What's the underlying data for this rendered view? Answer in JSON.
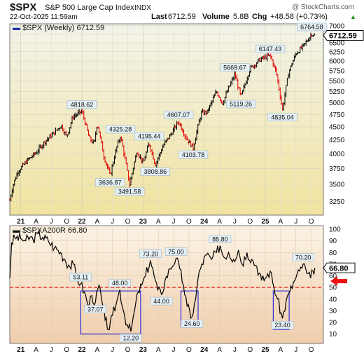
{
  "header": {
    "symbol": "$SPX",
    "name": "S&P 500 Large Cap Index",
    "exchange": "INDX",
    "date": "22-Oct-2025 11:59am",
    "watermark": "@ StockCharts.com",
    "last_label": "Last",
    "last_value": "6712.59",
    "volume_label": "Volume",
    "volume_value": "5.8B",
    "chg_label": "Chg",
    "chg_value": "+48.58 (+0.73%)",
    "chg_arrow": "▲"
  },
  "colors": {
    "price_bg_top": "#f3f3ea",
    "price_bg_bottom": "#f1e3a0",
    "ind_bg_top": "#fbf3e4",
    "ind_bg_bottom": "#f0ceac",
    "up": "#000000",
    "down": "#e00000",
    "box": "#2c2cd6",
    "threshold": "#e00000",
    "arrow": "#ee1111",
    "label_bg": "#e4f0f5",
    "label_border": "#9ab8c8"
  },
  "chart_data": [
    {
      "type": "line",
      "legend": "$SPX (Weekly) 6712.59",
      "y_ticks": [
        3250,
        3500,
        3750,
        4000,
        4250,
        4500,
        4750,
        5000,
        5250,
        5500,
        5750,
        6000,
        6250,
        6500,
        6750,
        7000
      ],
      "y_scale": "log",
      "last_value_label": "6712.59",
      "x_ticks": [
        "21",
        "A",
        "J",
        "O",
        "22",
        "A",
        "J",
        "O",
        "23",
        "A",
        "J",
        "O",
        "24",
        "A",
        "J",
        "O",
        "25",
        "A",
        "J",
        "O"
      ],
      "x_tick_t": [
        2021.0,
        2021.25,
        2021.5,
        2021.75,
        2022.0,
        2022.25,
        2022.5,
        2022.75,
        2023.0,
        2023.25,
        2023.5,
        2023.75,
        2024.0,
        2024.25,
        2024.5,
        2024.75,
        2025.0,
        2025.25,
        2025.5,
        2025.75
      ],
      "key_points": [
        {
          "t": 2020.82,
          "v": 3270
        },
        {
          "t": 2020.88,
          "v": 3510
        },
        {
          "t": 2020.95,
          "v": 3700
        },
        {
          "t": 2021.12,
          "v": 3900
        },
        {
          "t": 2021.25,
          "v": 4020
        },
        {
          "t": 2021.4,
          "v": 4230
        },
        {
          "t": 2021.55,
          "v": 4390
        },
        {
          "t": 2021.66,
          "v": 4530
        },
        {
          "t": 2021.75,
          "v": 4310
        },
        {
          "t": 2021.85,
          "v": 4700
        },
        {
          "t": 2022.0,
          "v": 4818.62
        },
        {
          "t": 2022.12,
          "v": 4280
        },
        {
          "t": 2022.2,
          "v": 4180
        },
        {
          "t": 2022.25,
          "v": 4580
        },
        {
          "t": 2022.36,
          "v": 3950
        },
        {
          "t": 2022.46,
          "v": 3636.87
        },
        {
          "t": 2022.57,
          "v": 4120
        },
        {
          "t": 2022.63,
          "v": 4325.28
        },
        {
          "t": 2022.78,
          "v": 3491.58
        },
        {
          "t": 2022.9,
          "v": 4050
        },
        {
          "t": 2023.0,
          "v": 3840
        },
        {
          "t": 2023.1,
          "v": 4195.44
        },
        {
          "t": 2023.2,
          "v": 3808.86
        },
        {
          "t": 2023.33,
          "v": 4150
        },
        {
          "t": 2023.45,
          "v": 4350
        },
        {
          "t": 2023.58,
          "v": 4607.07
        },
        {
          "t": 2023.7,
          "v": 4300
        },
        {
          "t": 2023.82,
          "v": 4103.78
        },
        {
          "t": 2023.95,
          "v": 4780
        },
        {
          "t": 2024.05,
          "v": 4800
        },
        {
          "t": 2024.2,
          "v": 5250
        },
        {
          "t": 2024.3,
          "v": 4990
        },
        {
          "t": 2024.5,
          "v": 5669.67
        },
        {
          "t": 2024.6,
          "v": 5119.26
        },
        {
          "t": 2024.75,
          "v": 5800
        },
        {
          "t": 2024.92,
          "v": 6050
        },
        {
          "t": 2025.08,
          "v": 6147.43
        },
        {
          "t": 2025.18,
          "v": 5700
        },
        {
          "t": 2025.28,
          "v": 4835.04
        },
        {
          "t": 2025.38,
          "v": 5700
        },
        {
          "t": 2025.5,
          "v": 6200
        },
        {
          "t": 2025.62,
          "v": 6400
        },
        {
          "t": 2025.72,
          "v": 6650
        },
        {
          "t": 2025.76,
          "v": 6764.58
        },
        {
          "t": 2025.81,
          "v": 6712.59
        }
      ],
      "annotations": [
        {
          "text": "4818.62",
          "t": 2022.0,
          "v": 4818.62,
          "pos": "above"
        },
        {
          "text": "3636.87",
          "t": 2022.46,
          "v": 3636.87,
          "pos": "below"
        },
        {
          "text": "4325.28",
          "t": 2022.63,
          "v": 4325.28,
          "pos": "above"
        },
        {
          "text": "3491.58",
          "t": 2022.78,
          "v": 3491.58,
          "pos": "below"
        },
        {
          "text": "4195.44",
          "t": 2023.1,
          "v": 4195.44,
          "pos": "above"
        },
        {
          "text": "3808.86",
          "t": 2023.2,
          "v": 3808.86,
          "pos": "below"
        },
        {
          "text": "4607.07",
          "t": 2023.58,
          "v": 4607.07,
          "pos": "above"
        },
        {
          "text": "4103.78",
          "t": 2023.82,
          "v": 4103.78,
          "pos": "below"
        },
        {
          "text": "5669.67",
          "t": 2024.5,
          "v": 5669.67,
          "pos": "above"
        },
        {
          "text": "5119.26",
          "t": 2024.6,
          "v": 5119.26,
          "pos": "below"
        },
        {
          "text": "6147.43",
          "t": 2025.08,
          "v": 6147.43,
          "pos": "above"
        },
        {
          "text": "4835.04",
          "t": 2025.28,
          "v": 4835.04,
          "pos": "below"
        },
        {
          "text": "6764.58",
          "t": 2025.76,
          "v": 6764.58,
          "pos": "above"
        }
      ]
    },
    {
      "type": "line",
      "legend": "$SPXA200R 66.80",
      "y_ticks": [
        10,
        20,
        30,
        40,
        50,
        60,
        70,
        80,
        90,
        100
      ],
      "ylim": [
        2,
        103
      ],
      "threshold": 50,
      "last_value_label": "66.80",
      "x_ticks": [
        "21",
        "A",
        "J",
        "O",
        "22",
        "A",
        "J",
        "O",
        "23",
        "A",
        "J",
        "O",
        "24",
        "A",
        "J",
        "O",
        "25",
        "A",
        "J",
        "O"
      ],
      "x_tick_t": [
        2021.0,
        2021.25,
        2021.5,
        2021.75,
        2022.0,
        2022.25,
        2022.5,
        2022.75,
        2023.0,
        2023.25,
        2023.5,
        2023.75,
        2024.0,
        2024.25,
        2024.5,
        2024.75,
        2025.0,
        2025.25,
        2025.5,
        2025.75
      ],
      "points": [
        [
          2020.82,
          58
        ],
        [
          2020.85,
          88
        ],
        [
          2020.9,
          93
        ],
        [
          2021.0,
          92
        ],
        [
          2021.08,
          90
        ],
        [
          2021.15,
          93
        ],
        [
          2021.2,
          91
        ],
        [
          2021.28,
          96
        ],
        [
          2021.36,
          93
        ],
        [
          2021.45,
          90
        ],
        [
          2021.55,
          84
        ],
        [
          2021.65,
          80
        ],
        [
          2021.72,
          74
        ],
        [
          2021.8,
          68
        ],
        [
          2021.86,
          70
        ],
        [
          2021.92,
          58
        ],
        [
          2021.98,
          53.11
        ],
        [
          2022.04,
          46
        ],
        [
          2022.1,
          34
        ],
        [
          2022.16,
          43
        ],
        [
          2022.22,
          37.07
        ],
        [
          2022.28,
          52
        ],
        [
          2022.32,
          40
        ],
        [
          2022.38,
          22
        ],
        [
          2022.45,
          14
        ],
        [
          2022.5,
          26
        ],
        [
          2022.56,
          36
        ],
        [
          2022.62,
          48.0
        ],
        [
          2022.68,
          30
        ],
        [
          2022.74,
          18
        ],
        [
          2022.8,
          12.2
        ],
        [
          2022.86,
          30
        ],
        [
          2022.92,
          46
        ],
        [
          2022.98,
          52
        ],
        [
          2023.04,
          60
        ],
        [
          2023.12,
          73.2
        ],
        [
          2023.18,
          60
        ],
        [
          2023.24,
          48
        ],
        [
          2023.3,
          44.0
        ],
        [
          2023.36,
          56
        ],
        [
          2023.44,
          66
        ],
        [
          2023.54,
          75.0
        ],
        [
          2023.6,
          66
        ],
        [
          2023.66,
          52
        ],
        [
          2023.72,
          34
        ],
        [
          2023.8,
          24.6
        ],
        [
          2023.86,
          40
        ],
        [
          2023.9,
          58
        ],
        [
          2023.96,
          70
        ],
        [
          2024.04,
          78
        ],
        [
          2024.12,
          74
        ],
        [
          2024.2,
          80
        ],
        [
          2024.26,
          85.8
        ],
        [
          2024.32,
          76
        ],
        [
          2024.4,
          80
        ],
        [
          2024.48,
          74
        ],
        [
          2024.56,
          82
        ],
        [
          2024.62,
          70
        ],
        [
          2024.7,
          80
        ],
        [
          2024.78,
          74
        ],
        [
          2024.86,
          68
        ],
        [
          2024.94,
          56
        ],
        [
          2025.0,
          58
        ],
        [
          2025.08,
          64
        ],
        [
          2025.14,
          50
        ],
        [
          2025.2,
          40
        ],
        [
          2025.28,
          23.4
        ],
        [
          2025.34,
          38
        ],
        [
          2025.4,
          46
        ],
        [
          2025.48,
          56
        ],
        [
          2025.56,
          64
        ],
        [
          2025.62,
          70.2
        ],
        [
          2025.68,
          62
        ],
        [
          2025.74,
          58
        ],
        [
          2025.78,
          64
        ],
        [
          2025.81,
          66.8
        ]
      ],
      "annotations": [
        {
          "text": "53.11",
          "t": 2021.98,
          "v": 53.11,
          "pos": "above"
        },
        {
          "text": "37.07",
          "t": 2022.22,
          "v": 37.07,
          "pos": "below"
        },
        {
          "text": "48.00",
          "t": 2022.62,
          "v": 48.0,
          "pos": "above"
        },
        {
          "text": "12.20",
          "t": 2022.8,
          "v": 12.2,
          "pos": "below"
        },
        {
          "text": "73.20",
          "t": 2023.12,
          "v": 73.2,
          "pos": "above"
        },
        {
          "text": "44.00",
          "t": 2023.3,
          "v": 44.0,
          "pos": "below"
        },
        {
          "text": "75.00",
          "t": 2023.54,
          "v": 75.0,
          "pos": "above"
        },
        {
          "text": "24.60",
          "t": 2023.8,
          "v": 24.6,
          "pos": "below"
        },
        {
          "text": "85.80",
          "t": 2024.26,
          "v": 85.8,
          "pos": "above"
        },
        {
          "text": "23.40",
          "t": 2025.28,
          "v": 23.4,
          "pos": "below"
        },
        {
          "text": "70.20",
          "t": 2025.62,
          "v": 70.2,
          "pos": "above"
        }
      ],
      "boxes": [
        {
          "t0": 2021.98,
          "t1": 2022.96,
          "v0": 47,
          "v1": 10
        },
        {
          "t0": 2023.62,
          "t1": 2023.9,
          "v0": 47,
          "v1": 17
        },
        {
          "t0": 2025.13,
          "t1": 2025.39,
          "v0": 47,
          "v1": 14
        }
      ]
    }
  ]
}
